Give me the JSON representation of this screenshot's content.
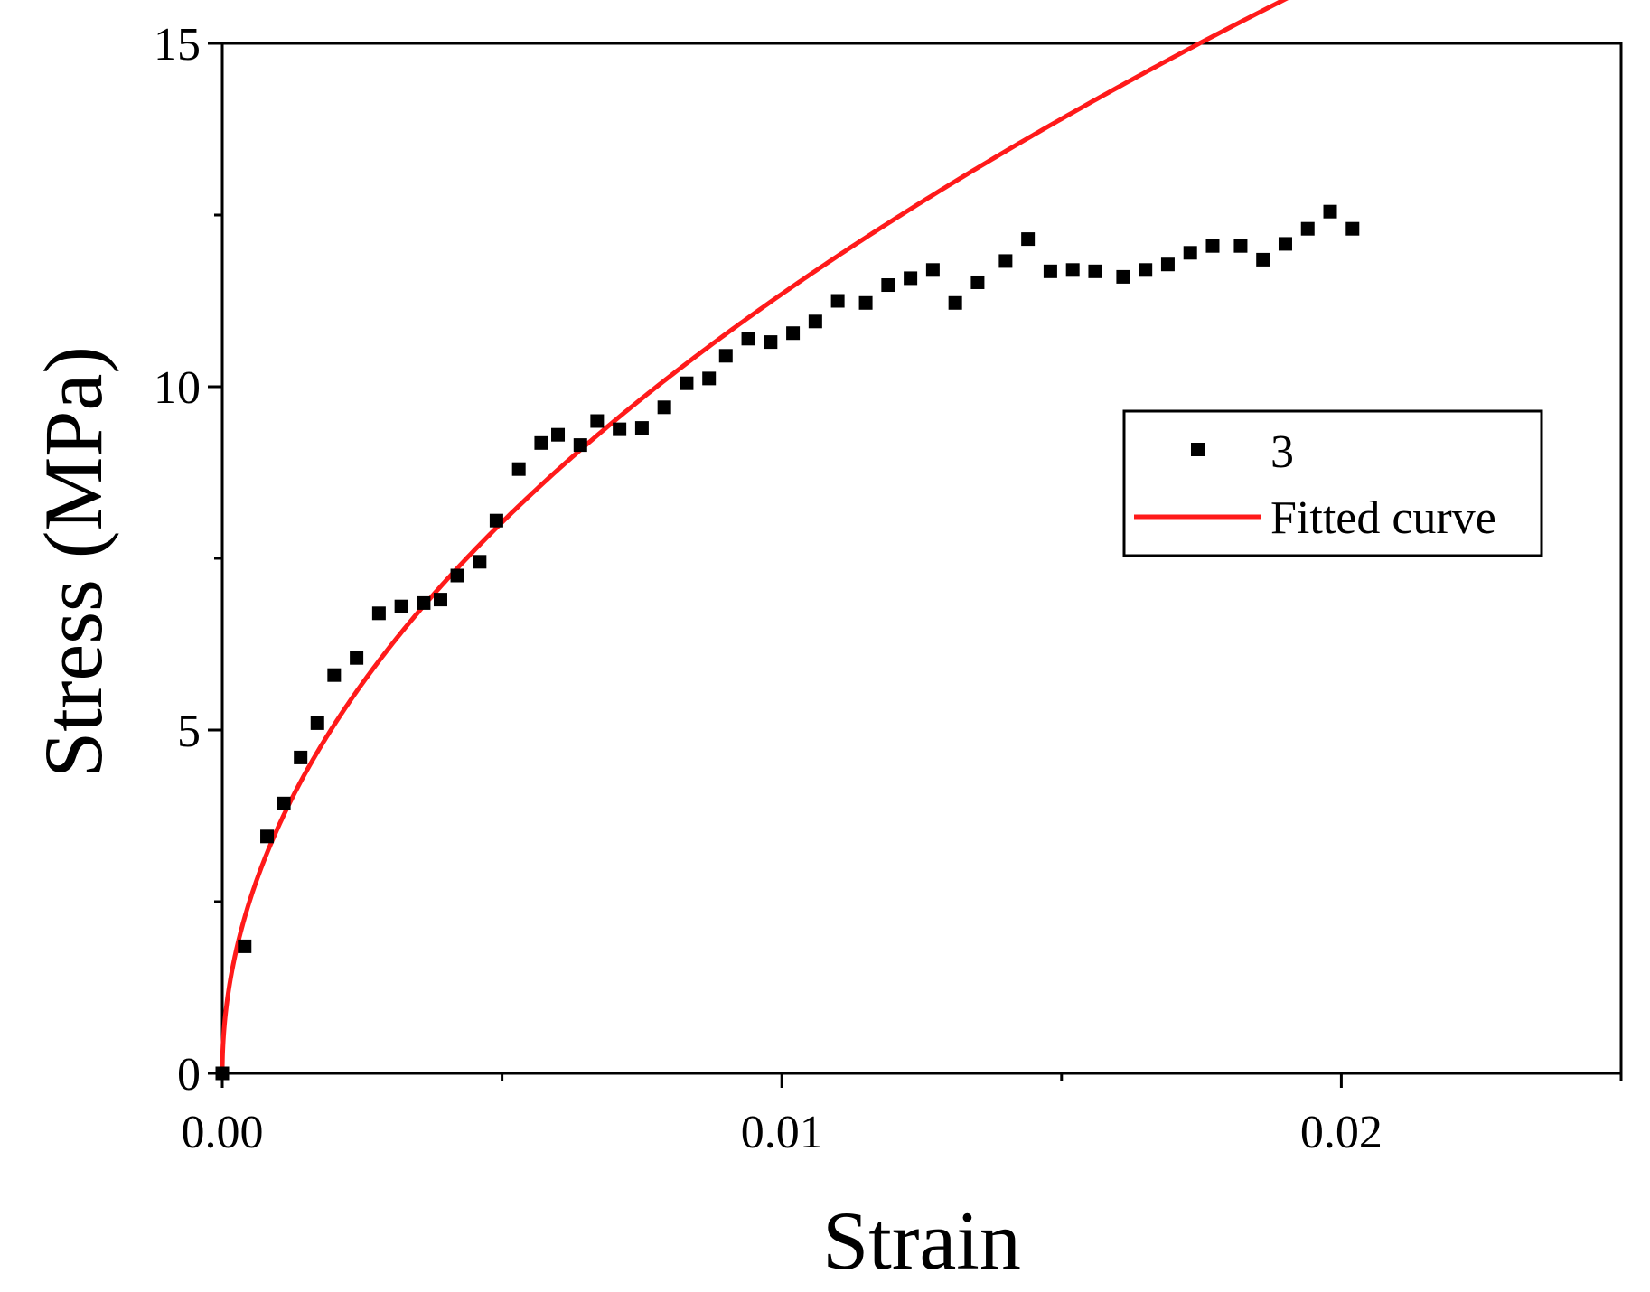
{
  "chart_data": {
    "type": "scatter",
    "title": "",
    "xlabel": "Strain",
    "ylabel": "Stress (MPa)",
    "xlim": [
      0,
      0.025
    ],
    "ylim": [
      0,
      15
    ],
    "x_ticks": [
      0,
      0.01,
      0.02
    ],
    "x_tick_labels": [
      "0.00",
      "0.01",
      "0.02"
    ],
    "x_minor_ticks": [
      0.005,
      0.015,
      0.025
    ],
    "y_ticks": [
      0,
      5,
      10,
      15
    ],
    "y_tick_labels": [
      "0",
      "5",
      "10",
      "15"
    ],
    "y_minor_ticks": [
      2.5,
      7.5,
      12.5
    ],
    "grid": false,
    "legend_position": "right",
    "series": [
      {
        "name": "3",
        "kind": "markers",
        "color": "#000000",
        "x": [
          0.0,
          0.0004,
          0.0008,
          0.0011,
          0.0014,
          0.0017,
          0.002,
          0.0024,
          0.0028,
          0.0032,
          0.0036,
          0.0039,
          0.0042,
          0.0046,
          0.0049,
          0.0053,
          0.0057,
          0.006,
          0.0064,
          0.0067,
          0.0071,
          0.0075,
          0.0079,
          0.0083,
          0.0087,
          0.009,
          0.0094,
          0.0098,
          0.0102,
          0.0106,
          0.011,
          0.0115,
          0.0119,
          0.0123,
          0.0127,
          0.0131,
          0.0135,
          0.014,
          0.0144,
          0.0148,
          0.0152,
          0.0156,
          0.0161,
          0.0165,
          0.0169,
          0.0173,
          0.0177,
          0.0182,
          0.0186,
          0.019,
          0.0194,
          0.0198,
          0.0202
        ],
        "y": [
          0.0,
          1.85,
          3.45,
          3.93,
          4.6,
          5.1,
          5.8,
          6.05,
          6.7,
          6.8,
          6.85,
          6.9,
          7.25,
          7.45,
          8.05,
          8.8,
          9.18,
          9.3,
          9.15,
          9.5,
          9.38,
          9.4,
          9.7,
          10.05,
          10.12,
          10.45,
          10.7,
          10.65,
          10.78,
          10.95,
          11.25,
          11.22,
          11.48,
          11.58,
          11.7,
          11.22,
          11.52,
          11.83,
          12.15,
          11.68,
          11.7,
          11.68,
          11.6,
          11.7,
          11.78,
          11.95,
          12.05,
          12.05,
          11.85,
          12.08,
          12.3,
          12.55,
          12.3
        ]
      },
      {
        "name": "Fitted curve",
        "kind": "line",
        "color": "#ff1a1a",
        "fit_coefficient": 113.5,
        "fit_exponent": 0.5,
        "x_range": [
          0,
          0.0203
        ]
      }
    ]
  }
}
